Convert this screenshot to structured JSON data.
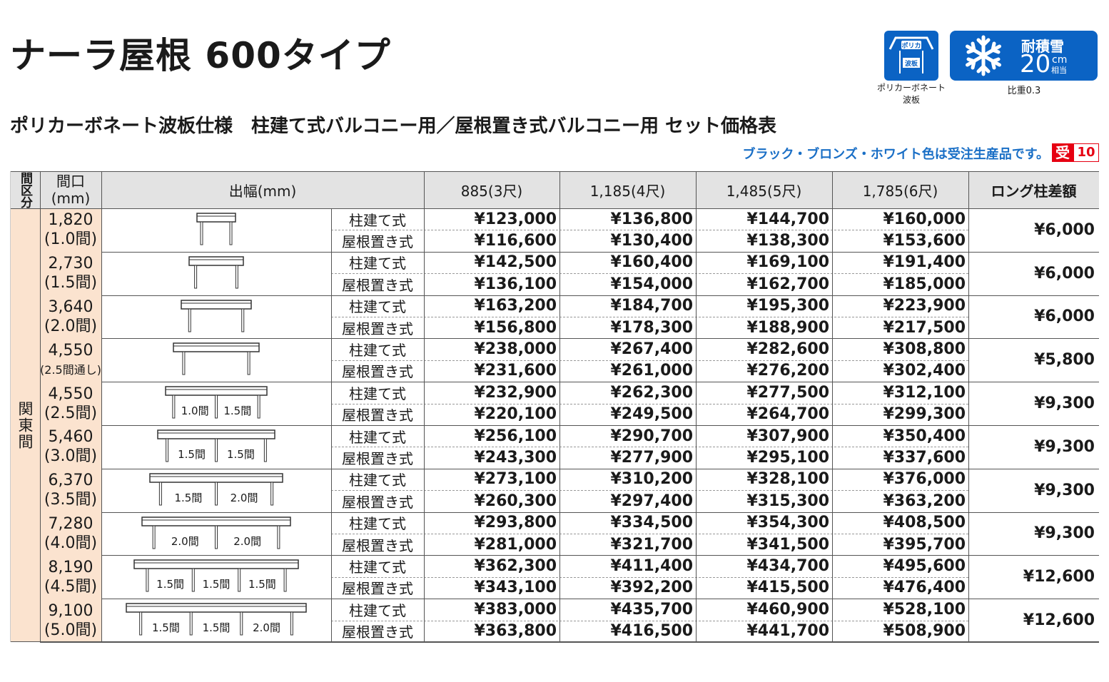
{
  "title": "ナーラ屋根  600タイプ",
  "subtitle": "ポリカーボネート波板仕様　柱建て式バルコニー用／屋根置き式バルコニー用 セット価格表",
  "note": "ブラック・ブロンズ・ホワイト色は受注生産品です。",
  "juchu": {
    "mark": "受",
    "days": "10"
  },
  "badge_poly": {
    "top": "ポリカ",
    "bottom": "波板",
    "caption_line1": "ポリカーボネート",
    "caption_line2": "波板"
  },
  "badge_snow": {
    "label": "耐積雪",
    "value": "20",
    "unit": "cm",
    "unit2": "相当",
    "caption": "比重0.3"
  },
  "colors": {
    "accent_blue": "#0b63c4",
    "note_blue": "#1a6fc6",
    "juchu_red": "#e60012",
    "kubun_bg": "#fbe3cf",
    "header_bg": "#e3e3e3"
  },
  "headers": {
    "kubun": "間区分",
    "maguchi_line1": "間口",
    "maguchi_line2": "(mm)",
    "debaba": "出幅(mm)",
    "cols": [
      "885(3尺)",
      "1,185(4尺)",
      "1,485(5尺)",
      "1,785(6尺)"
    ],
    "long": "ロング柱差額"
  },
  "region": "関東間",
  "types": [
    "柱建て式",
    "屋根置き式"
  ],
  "rows": [
    {
      "width": "1,820",
      "ken": "(1.0間)",
      "spans": [],
      "hashira": [
        "¥123,000",
        "¥136,800",
        "¥144,700",
        "¥160,000"
      ],
      "yane": [
        "¥116,600",
        "¥130,400",
        "¥138,300",
        "¥153,600"
      ],
      "long": "¥6,000"
    },
    {
      "width": "2,730",
      "ken": "(1.5間)",
      "spans": [],
      "hashira": [
        "¥142,500",
        "¥160,400",
        "¥169,100",
        "¥191,400"
      ],
      "yane": [
        "¥136,100",
        "¥154,000",
        "¥162,700",
        "¥185,000"
      ],
      "long": "¥6,000"
    },
    {
      "width": "3,640",
      "ken": "(2.0間)",
      "spans": [],
      "hashira": [
        "¥163,200",
        "¥184,700",
        "¥195,300",
        "¥223,900"
      ],
      "yane": [
        "¥156,800",
        "¥178,300",
        "¥188,900",
        "¥217,500"
      ],
      "long": "¥6,000"
    },
    {
      "width": "4,550",
      "ken": "(2.5間通し)",
      "spans": [],
      "hashira": [
        "¥238,000",
        "¥267,400",
        "¥282,600",
        "¥308,800"
      ],
      "yane": [
        "¥231,600",
        "¥261,000",
        "¥276,200",
        "¥302,400"
      ],
      "long": "¥5,800"
    },
    {
      "width": "4,550",
      "ken": "(2.5間)",
      "spans": [
        "1.0間",
        "1.5間"
      ],
      "hashira": [
        "¥232,900",
        "¥262,300",
        "¥277,500",
        "¥312,100"
      ],
      "yane": [
        "¥220,100",
        "¥249,500",
        "¥264,700",
        "¥299,300"
      ],
      "long": "¥9,300"
    },
    {
      "width": "5,460",
      "ken": "(3.0間)",
      "spans": [
        "1.5間",
        "1.5間"
      ],
      "hashira": [
        "¥256,100",
        "¥290,700",
        "¥307,900",
        "¥350,400"
      ],
      "yane": [
        "¥243,300",
        "¥277,900",
        "¥295,100",
        "¥337,600"
      ],
      "long": "¥9,300"
    },
    {
      "width": "6,370",
      "ken": "(3.5間)",
      "spans": [
        "1.5間",
        "2.0間"
      ],
      "hashira": [
        "¥273,100",
        "¥310,200",
        "¥328,100",
        "¥376,000"
      ],
      "yane": [
        "¥260,300",
        "¥297,400",
        "¥315,300",
        "¥363,200"
      ],
      "long": "¥9,300"
    },
    {
      "width": "7,280",
      "ken": "(4.0間)",
      "spans": [
        "2.0間",
        "2.0間"
      ],
      "hashira": [
        "¥293,800",
        "¥334,500",
        "¥354,300",
        "¥408,500"
      ],
      "yane": [
        "¥281,000",
        "¥321,700",
        "¥341,500",
        "¥395,700"
      ],
      "long": "¥9,300"
    },
    {
      "width": "8,190",
      "ken": "(4.5間)",
      "spans": [
        "1.5間",
        "1.5間",
        "1.5間"
      ],
      "hashira": [
        "¥362,300",
        "¥411,400",
        "¥434,700",
        "¥495,600"
      ],
      "yane": [
        "¥343,100",
        "¥392,200",
        "¥415,500",
        "¥476,400"
      ],
      "long": "¥12,600"
    },
    {
      "width": "9,100",
      "ken": "(5.0間)",
      "spans": [
        "1.5間",
        "1.5間",
        "2.0間"
      ],
      "hashira": [
        "¥383,000",
        "¥435,700",
        "¥460,900",
        "¥528,100"
      ],
      "yane": [
        "¥363,800",
        "¥416,500",
        "¥441,700",
        "¥508,900"
      ],
      "long": "¥12,600"
    }
  ]
}
